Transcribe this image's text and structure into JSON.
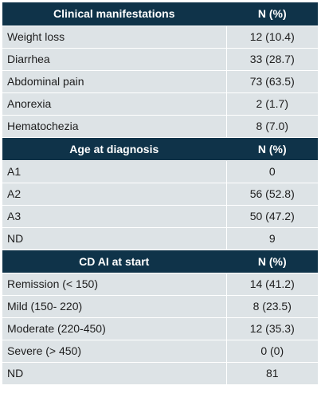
{
  "sections": [
    {
      "header": {
        "label": "Clinical manifestations",
        "value": "N (%)"
      },
      "rows": [
        {
          "label": "Weight loss",
          "value": "12 (10.4)"
        },
        {
          "label": "Diarrhea",
          "value": "33 (28.7)"
        },
        {
          "label": "Abdominal pain",
          "value": "73 (63.5)"
        },
        {
          "label": "Anorexia",
          "value": "2 (1.7)"
        },
        {
          "label": "Hematochezia",
          "value": "8 (7.0)"
        }
      ]
    },
    {
      "header": {
        "label": "Age at diagnosis",
        "value": "N (%)"
      },
      "rows": [
        {
          "label": "A1",
          "value": "0"
        },
        {
          "label": "A2",
          "value": "56 (52.8)"
        },
        {
          "label": "A3",
          "value": "50 (47.2)"
        },
        {
          "label": "ND",
          "value": "9"
        }
      ]
    },
    {
      "header": {
        "label": "CD AI at start",
        "value": "N (%)"
      },
      "rows": [
        {
          "label": "Remission (< 150)",
          "value": "14 (41.2)"
        },
        {
          "label": "Mild (150- 220)",
          "value": "8 (23.5)"
        },
        {
          "label": "Moderate (220-450)",
          "value": "12 (35.3)"
        },
        {
          "label": "Severe (> 450)",
          "value": "0 (0)"
        },
        {
          "label": "ND",
          "value": "81"
        }
      ]
    }
  ],
  "colors": {
    "header_bg": "#0f3349",
    "header_text": "#ffffff",
    "row_bg": "#dde3e6",
    "row_text": "#1e1e1e"
  }
}
